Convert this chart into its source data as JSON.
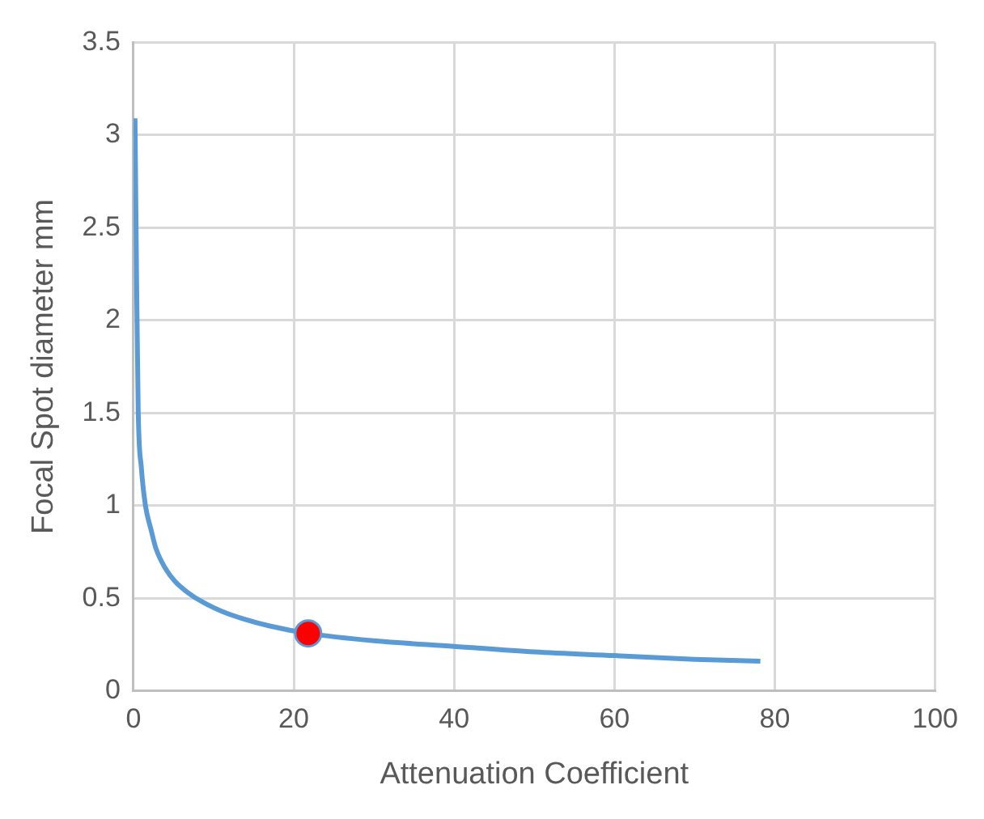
{
  "chart_data": {
    "type": "line",
    "xlabel": "Attenuation Coefficient",
    "ylabel": "Focal Spot diameter mm",
    "xlim": [
      0,
      100
    ],
    "xticks": [
      0,
      20,
      40,
      60,
      80,
      100
    ],
    "ylim": [
      0,
      3.5
    ],
    "yticks": [
      0,
      0.5,
      1,
      1.5,
      2,
      2.5,
      3,
      3.5
    ],
    "grid": true,
    "marker": "none",
    "series": [
      {
        "type": "line",
        "color": "#5b9bd5",
        "x": [
          0.2,
          0.4,
          0.6,
          1.0,
          1.5,
          2.2,
          2.8,
          4.0,
          5.2,
          6.8,
          8.6,
          11,
          13.6,
          17,
          21.8,
          30,
          40,
          50,
          60,
          70,
          78.2
        ],
        "values": [
          3.09,
          2.2,
          1.51,
          1.2,
          1.0,
          0.87,
          0.77,
          0.66,
          0.59,
          0.53,
          0.48,
          0.43,
          0.39,
          0.35,
          0.31,
          0.27,
          0.24,
          0.21,
          0.19,
          0.17,
          0.16
        ]
      },
      {
        "type": "scatter",
        "color": "#ff0000",
        "marker": "circle",
        "x": [
          21.8
        ],
        "values": [
          0.31
        ]
      }
    ]
  }
}
